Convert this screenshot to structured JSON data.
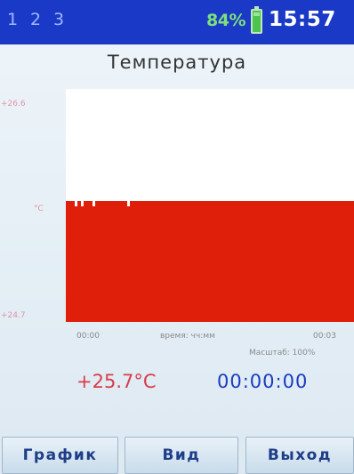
{
  "status_bar": {
    "channels": [
      "1",
      "2",
      "3"
    ],
    "battery_percent": "84%",
    "time": "15:57",
    "colors": {
      "background": "#1a39c6",
      "battery": "#4ec44e"
    }
  },
  "title": "Температура",
  "chart_data": {
    "type": "area",
    "y_axis": {
      "max_label": "+26.6",
      "unit_label": "°C",
      "min_label": "+24.7"
    },
    "x_axis": {
      "start_label": "00:00",
      "center_label": "время: чч:мм",
      "end_label": "00:03"
    },
    "scale_label": "Масштаб: 100%",
    "level_fraction_of_range": 0.52,
    "fill_color": "#df1f0a"
  },
  "readings": {
    "temperature": "+25.7°C",
    "elapsed": "00:00:00"
  },
  "buttons": {
    "graph": "График",
    "view": "Вид",
    "exit": "Выход"
  }
}
